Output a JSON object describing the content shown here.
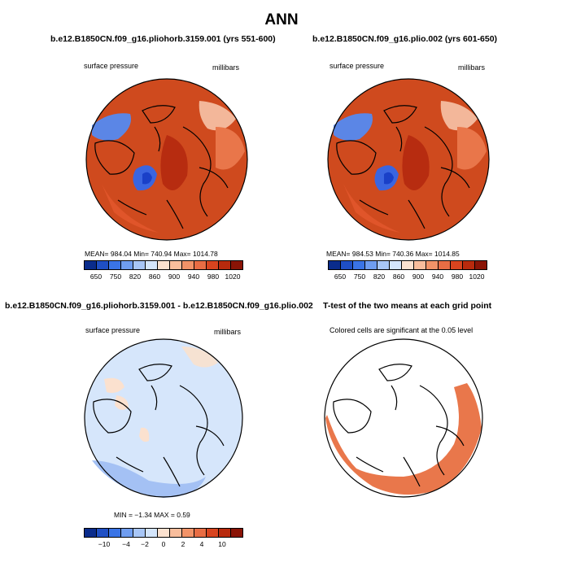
{
  "title": "ANN",
  "panels": [
    {
      "title": "b.e12.B1850CN.f09_g16.pliohorb.3159.001 (yrs 551-600)",
      "left_label": "surface pressure",
      "right_label": "millibars",
      "stats": "MEAN= 984.04   Min= 740.94   Max= 1014.78"
    },
    {
      "title": "b.e12.B1850CN.f09_g16.plio.002 (yrs 601-650)",
      "left_label": "surface pressure",
      "right_label": "millibars",
      "stats": "MEAN= 984.53   Min= 740.36   Max= 1014.85"
    },
    {
      "title": "b.e12.B1850CN.f09_g16.pliohorb.3159.001 - b.e12.B1850CN.f09_g16.plio.002",
      "left_label": "surface pressure",
      "right_label": "millibars",
      "stats": "MIN =  −1.34  MAX =    0.59"
    },
    {
      "title": "T-test of the two means at each grid point",
      "center_label": "Colored cells are significant at the 0.05 level"
    }
  ],
  "colorbar_top": {
    "ticks": [
      "650",
      "750",
      "820",
      "860",
      "900",
      "940",
      "980",
      "1020"
    ],
    "colors": [
      "#0a2c8c",
      "#1f4fc4",
      "#3a74e6",
      "#6f9df0",
      "#a8c6f6",
      "#d4e5fb",
      "#fbe1cf",
      "#f8bd9c",
      "#f29368",
      "#e86d44",
      "#d8441f",
      "#b82a0d",
      "#8a1406"
    ]
  },
  "colorbar_bottom": {
    "ticks": [
      "−10",
      "−4",
      "−2",
      "0",
      "2",
      "4",
      "10"
    ],
    "colors": [
      "#0a2c8c",
      "#1f4fc4",
      "#3a74e6",
      "#6f9df0",
      "#a8c6f6",
      "#d4e5fb",
      "#fbe1cf",
      "#f8bd9c",
      "#f29368",
      "#e86d44",
      "#d8441f",
      "#b82a0d",
      "#8a1406"
    ]
  }
}
